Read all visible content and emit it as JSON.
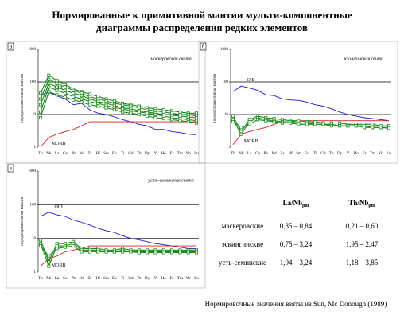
{
  "title": [
    "Нормированные к примитивной мантии мульти-компонентные",
    "диаграммы распределения редких элементов"
  ],
  "chart_data": [
    {
      "type": "line",
      "label": "а",
      "subtitle": "маскеровская свита",
      "y_label": "порода/примитивная мантия",
      "log": true,
      "grid": true,
      "categories": [
        "Th",
        "Nb",
        "La",
        "Ce",
        "Pb",
        "Nd",
        "Zr",
        "Hf",
        "Sm",
        "Eu",
        "Ti",
        "Gd",
        "Tb",
        "Dy",
        "Y",
        "Ho",
        "Er",
        "Tm",
        "Yb",
        "Lu"
      ],
      "ylim": [
        1,
        1000
      ],
      "yticks": [
        1,
        10,
        100,
        1000
      ],
      "series": [
        {
          "name": "OIB",
          "color": "#1a1acc",
          "values": [
            40,
            48,
            37,
            30,
            20,
            22,
            14,
            11,
            10,
            8.5,
            7,
            6,
            5,
            4.5,
            3.5,
            3.5,
            3,
            2.8,
            2.5,
            2.4
          ]
        },
        {
          "name": "MORB",
          "color": "#dd2222",
          "values": [
            1,
            2,
            2.5,
            3,
            3.5,
            4.5,
            6,
            6,
            6,
            6,
            6,
            6,
            6,
            6,
            6,
            6,
            6,
            6,
            6,
            6
          ]
        },
        {
          "color": "#1a8a1a",
          "values": [
            45,
            160,
            110,
            85,
            60,
            50,
            42,
            36,
            30,
            26,
            22,
            20,
            18,
            16,
            15,
            14,
            13,
            12,
            11,
            11
          ]
        },
        {
          "color": "#1a8a1a",
          "values": [
            30,
            120,
            90,
            70,
            55,
            45,
            35,
            30,
            26,
            22,
            20,
            18,
            16,
            14,
            13,
            12,
            11,
            10,
            10,
            9
          ]
        },
        {
          "color": "#1a8a1a",
          "values": [
            20,
            90,
            70,
            55,
            45,
            38,
            30,
            25,
            22,
            19,
            16,
            15,
            13,
            12,
            11,
            10,
            9.5,
            9,
            8.5,
            8
          ]
        },
        {
          "color": "#1a8a1a",
          "values": [
            12,
            70,
            55,
            45,
            35,
            30,
            25,
            22,
            19,
            16,
            15,
            13,
            12,
            11,
            10,
            9,
            8,
            7.5,
            7,
            6.5
          ]
        },
        {
          "color": "#1a8a1a",
          "values": [
            8,
            50,
            40,
            34,
            28,
            24,
            20,
            18,
            16,
            14,
            12,
            11,
            10,
            9,
            8,
            7.5,
            7,
            6.5,
            6,
            5.5
          ]
        }
      ]
    },
    {
      "type": "line",
      "label": "б",
      "subtitle": "эскингинская свита",
      "y_label": "порода/примитивная мантия",
      "log": true,
      "grid": true,
      "categories": [
        "Th",
        "Nb",
        "La",
        "Ce",
        "Pb",
        "Nd",
        "Zr",
        "Hf",
        "Sm",
        "Eu",
        "Ti",
        "Gd",
        "Tb",
        "Dy",
        "Y",
        "Ho",
        "Er",
        "Tm",
        "Yb",
        "Lu"
      ],
      "ylim": [
        1,
        1000
      ],
      "yticks": [
        1,
        10,
        100,
        1000
      ],
      "series": [
        {
          "name": "OIB",
          "color": "#1a1acc",
          "values": [
            50,
            75,
            65,
            55,
            40,
            38,
            30,
            28,
            27,
            24,
            20,
            18,
            15,
            12,
            10,
            9,
            8,
            7.5,
            7,
            6.5
          ]
        },
        {
          "name": "MORB",
          "color": "#dd2222",
          "values": [
            1.2,
            2.5,
            3,
            3.5,
            4,
            5,
            6,
            6,
            6.5,
            6.5,
            6.5,
            6.5,
            6.5,
            6.5,
            6.5,
            6.5,
            6.5,
            6.5,
            6.5,
            6.5
          ]
        },
        {
          "color": "#1a8a1a",
          "values": [
            9,
            3,
            7,
            9,
            8,
            7.5,
            7,
            6.5,
            6.5,
            6,
            6,
            5.5,
            5.5,
            5.5,
            5,
            5,
            5,
            5,
            4.5,
            4.5
          ]
        },
        {
          "color": "#1a8a1a",
          "values": [
            7,
            2.5,
            6,
            8,
            7,
            6.5,
            6,
            6,
            5.5,
            5.5,
            5,
            5,
            5,
            4.5,
            4.5,
            4.5,
            4.5,
            4,
            4,
            4
          ]
        },
        {
          "color": "#1a8a1a",
          "values": [
            6,
            4,
            5,
            7,
            6.5,
            6,
            5.5,
            5.5,
            5,
            5,
            5,
            5,
            4.5,
            4.5,
            4.5,
            4.5,
            4,
            4,
            4,
            3.8
          ]
        }
      ]
    },
    {
      "type": "line",
      "label": "в",
      "subtitle": "усть-семинская свита",
      "y_label": "порода/примитивная мантия",
      "log": true,
      "grid": true,
      "categories": [
        "Th",
        "Nb",
        "La",
        "Ce",
        "Pb",
        "Nd",
        "Zr",
        "Hf",
        "Sm",
        "Eu",
        "Ti",
        "Gd",
        "Tb",
        "Dy",
        "Y",
        "Ho",
        "Er",
        "Tm",
        "Yb",
        "Lu"
      ],
      "ylim": [
        1,
        1000
      ],
      "yticks": [
        1,
        10,
        100,
        1000
      ],
      "series": [
        {
          "name": "OIB",
          "color": "#1a1acc",
          "values": [
            45,
            60,
            50,
            45,
            35,
            30,
            25,
            20,
            17,
            15,
            12,
            10,
            9,
            8,
            7,
            6.5,
            6,
            5.5,
            5,
            5
          ]
        },
        {
          "name": "MORB",
          "color": "#dd2222",
          "values": [
            1.5,
            2.5,
            3,
            4,
            4.5,
            5,
            6,
            6,
            6,
            6,
            6,
            6,
            6,
            6,
            6,
            6,
            6,
            6,
            6,
            6
          ]
        },
        {
          "color": "#1a8a1a",
          "values": [
            9,
            2,
            7,
            7,
            8,
            5,
            5,
            5,
            4.5,
            4.5,
            5,
            4.5,
            4.5,
            4.5,
            4.5,
            4.5,
            4.5,
            4.5,
            4.5,
            4.5
          ]
        },
        {
          "color": "#1a8a1a",
          "values": [
            7,
            1.5,
            6,
            6,
            7,
            4.5,
            4.5,
            4.5,
            4,
            4,
            4.5,
            4,
            4,
            4,
            4,
            4,
            4,
            4,
            4,
            4
          ]
        },
        {
          "color": "#1a8a1a",
          "values": [
            6,
            3,
            5,
            5.5,
            6,
            4,
            4,
            4,
            4,
            4,
            4,
            4,
            3.8,
            3.8,
            3.8,
            3.8,
            3.8,
            3.8,
            3.8,
            3.8
          ]
        }
      ]
    }
  ],
  "table": {
    "header": [
      {
        "text": "La/Nb",
        "sub": "pm"
      },
      {
        "text": "Th/Nb",
        "sub": "pm"
      }
    ],
    "rows": [
      [
        "маскеровские",
        "0,35 – 0,84",
        "0,21 – 0,60"
      ],
      [
        "эскингинские",
        "0,75 – 3,24",
        "1,95 – 2,47"
      ],
      [
        "усть-семинские",
        "1,94 – 3,24",
        "1,18 – 3,85"
      ]
    ]
  },
  "footnote": "Нормировочные значения взяты из Sun, Mc Donough (1989)"
}
